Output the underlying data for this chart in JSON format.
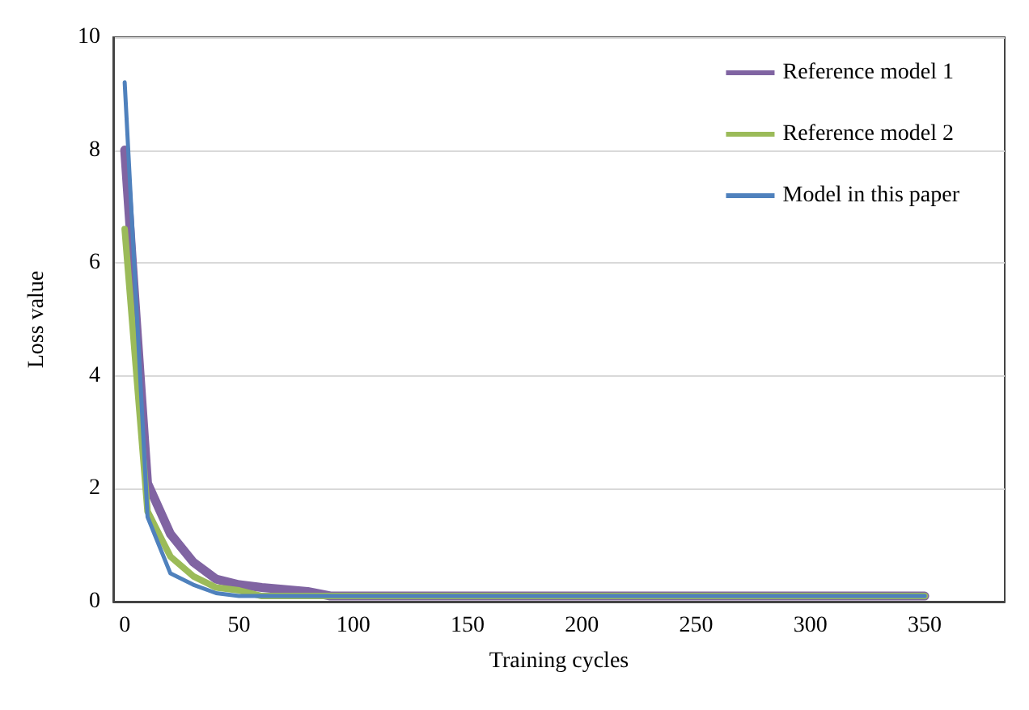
{
  "chart_data": {
    "type": "line",
    "xlabel": "Training cycles",
    "ylabel": "Loss value",
    "xlim": [
      -5,
      385
    ],
    "xticks": [
      0,
      50,
      100,
      150,
      200,
      250,
      300,
      350
    ],
    "ylim": [
      0,
      10
    ],
    "yticks": [
      0,
      2,
      4,
      6,
      8,
      10
    ],
    "grid": "y",
    "legend": "top right",
    "series": [
      {
        "name": "Reference model 1",
        "color": "#8064a2",
        "x": [
          0,
          10,
          20,
          30,
          40,
          50,
          60,
          80,
          90,
          350
        ],
        "values": [
          8.0,
          2.1,
          1.2,
          0.7,
          0.4,
          0.3,
          0.25,
          0.18,
          0.1,
          0.1
        ]
      },
      {
        "name": "Reference model 2",
        "color": "#9bbb59",
        "x": [
          0,
          10,
          20,
          30,
          40,
          50,
          60,
          350
        ],
        "values": [
          6.6,
          1.6,
          0.8,
          0.45,
          0.25,
          0.2,
          0.1,
          0.1
        ]
      },
      {
        "name": "Model in this paper",
        "color": "#4f81bd",
        "x": [
          0,
          10,
          20,
          30,
          40,
          50,
          350
        ],
        "values": [
          9.2,
          1.5,
          0.5,
          0.3,
          0.15,
          0.1,
          0.1
        ]
      }
    ]
  }
}
